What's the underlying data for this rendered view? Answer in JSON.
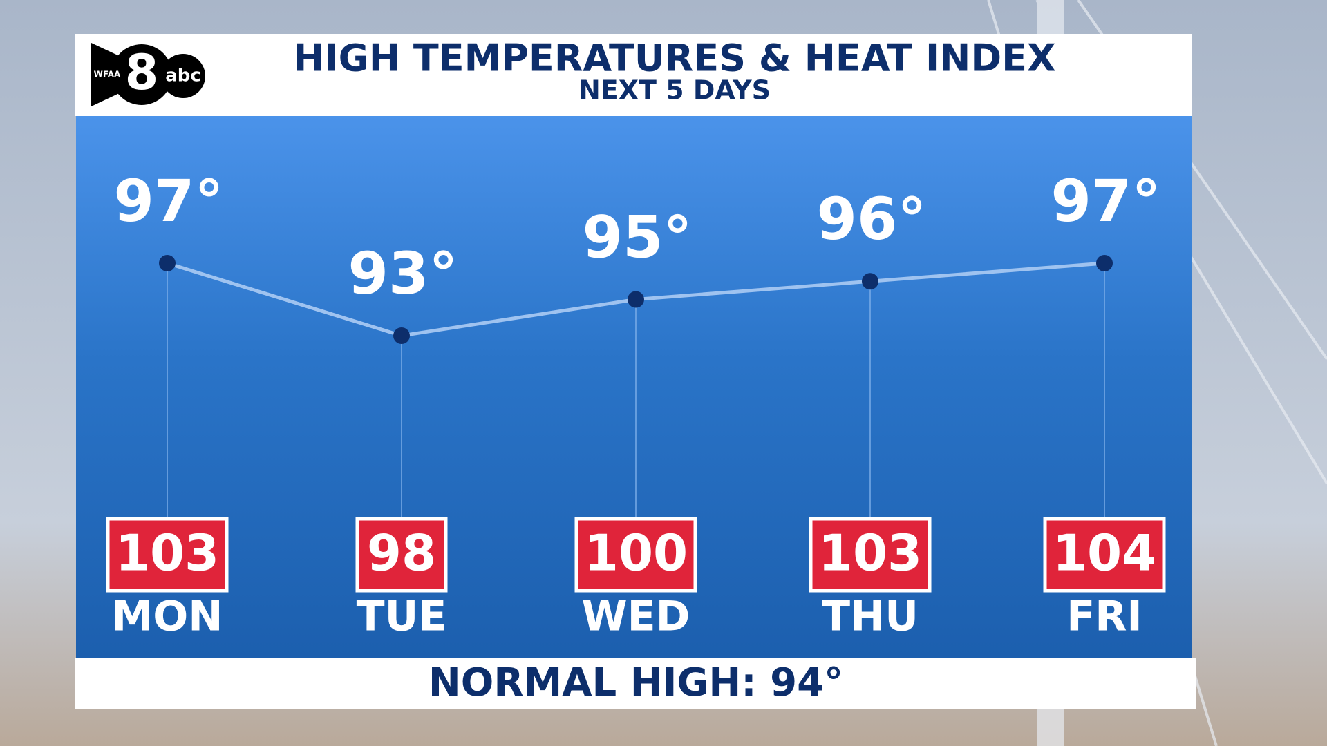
{
  "logo": {
    "station": "WFAA",
    "number": "8",
    "network": "abc"
  },
  "chart_data": {
    "type": "line",
    "title": "HIGH TEMPERATURES & HEAT INDEX",
    "subtitle": "NEXT 5 DAYS",
    "categories": [
      "MON",
      "TUE",
      "WED",
      "THU",
      "FRI"
    ],
    "series": [
      {
        "type": "line",
        "color": "#9fc3f0",
        "values": [
          97,
          93,
          95,
          96,
          97
        ],
        "value_labels": [
          "97°",
          "93°",
          "95°",
          "96°",
          "97°"
        ]
      },
      {
        "type": "box",
        "color": "#e0243a",
        "values": [
          103,
          98,
          100,
          103,
          104
        ]
      }
    ],
    "annotation": "NORMAL HIGH:  94°"
  }
}
